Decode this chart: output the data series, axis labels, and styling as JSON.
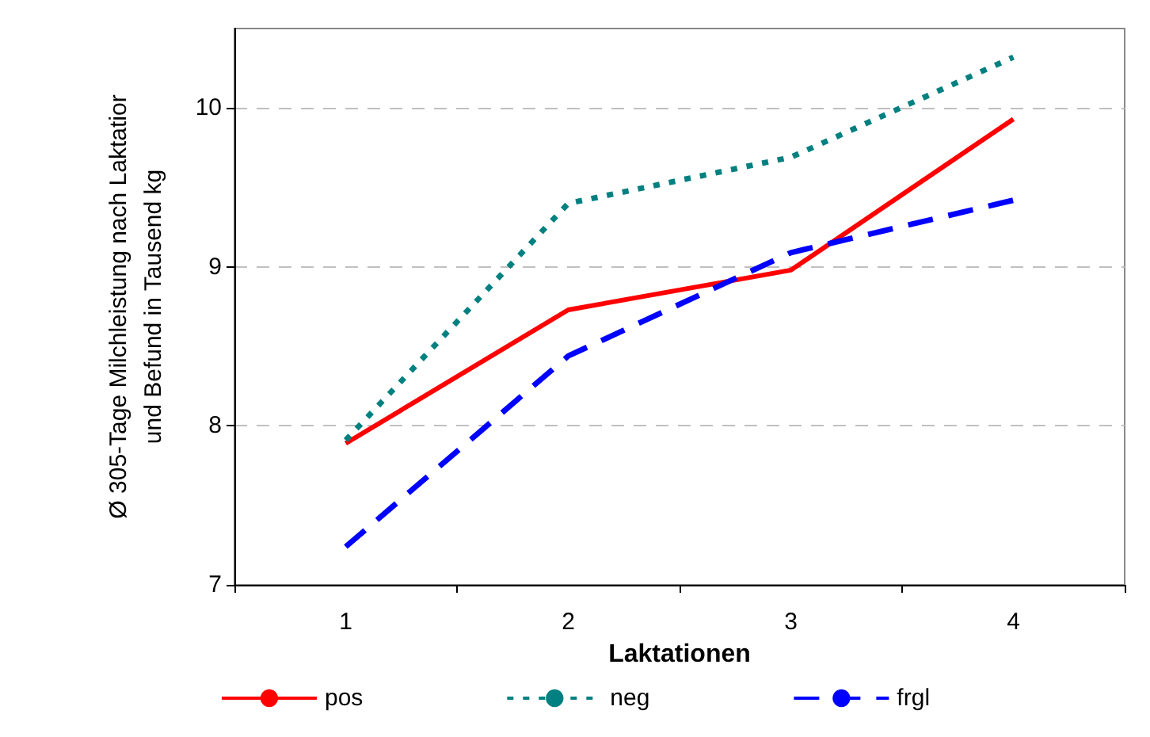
{
  "chart_data": {
    "type": "line",
    "xlabel": "Laktationen",
    "ylabel": "Ø 305-Tage Milchleistung nach Laktatior\nund Befund in Tausend kg",
    "categories": [
      "1",
      "2",
      "3",
      "4"
    ],
    "series": [
      {
        "name": "pos",
        "color": "#ff0000",
        "line_style": "solid",
        "values": [
          7.89,
          8.73,
          8.98,
          9.93
        ]
      },
      {
        "name": "neg",
        "color": "#008080",
        "line_style": "dotted",
        "values": [
          7.91,
          9.4,
          9.69,
          10.32
        ]
      },
      {
        "name": "frgl",
        "color": "#0000ff",
        "line_style": "dashed",
        "values": [
          7.24,
          8.44,
          9.09,
          9.42
        ]
      }
    ],
    "ylim": [
      7,
      10.5
    ],
    "yticks": [
      7,
      8,
      9,
      10
    ],
    "grid": "y",
    "legend": "bottom",
    "marker": "none"
  }
}
